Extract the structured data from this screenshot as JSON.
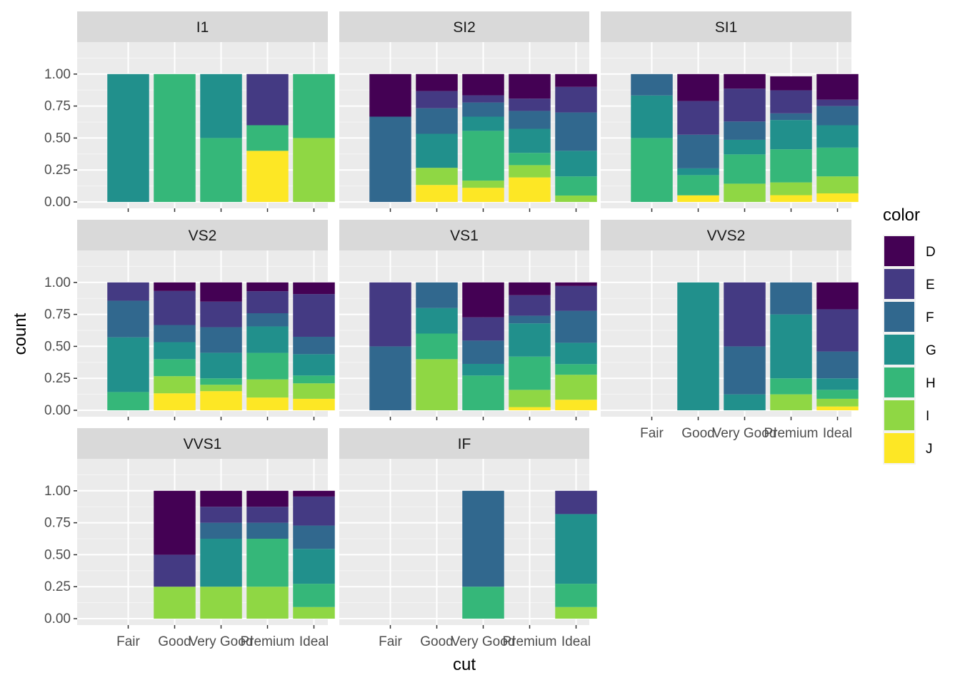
{
  "chart_data": {
    "type": "bar",
    "stacked": true,
    "position": "fill",
    "xlabel": "cut",
    "ylabel": "count",
    "ylim": [
      0,
      1
    ],
    "yticks": [
      "0.00",
      "0.25",
      "0.50",
      "0.75",
      "1.00"
    ],
    "categories": [
      "Fair",
      "Good",
      "Very Good",
      "Premium",
      "Ideal"
    ],
    "grid": true,
    "legend": {
      "title": "color",
      "position": "right",
      "entries": [
        "D",
        "E",
        "F",
        "G",
        "H",
        "I",
        "J"
      ],
      "colors": [
        "#440154",
        "#443A83",
        "#31688E",
        "#21908C",
        "#35B779",
        "#8FD744",
        "#FDE725"
      ]
    },
    "panels": [
      {
        "name": "I1",
        "bars": {
          "Fair": [
            0,
            0,
            0,
            1.0,
            0,
            0,
            0
          ],
          "Good": [
            0,
            0,
            0,
            0,
            1.0,
            0,
            0
          ],
          "Very Good": [
            0,
            0,
            0,
            0.5,
            0.5,
            0,
            0
          ],
          "Premium": [
            0,
            0.4,
            0,
            0,
            0.2,
            0,
            0.4
          ],
          "Ideal": [
            0,
            0,
            0,
            0,
            0.5,
            0.5,
            0
          ]
        }
      },
      {
        "name": "SI2",
        "bars": {
          "Fair": [
            0.333,
            0,
            0.667,
            0,
            0,
            0,
            0
          ],
          "Good": [
            0.133,
            0.134,
            0.2,
            0.266,
            0,
            0.134,
            0.133
          ],
          "Very Good": [
            0.166,
            0.056,
            0.111,
            0.111,
            0.389,
            0.056,
            0.111
          ],
          "Premium": [
            0.192,
            0.096,
            0.14,
            0.188,
            0.096,
            0.096,
            0.192
          ],
          "Ideal": [
            0.1,
            0.2,
            0.3,
            0.2,
            0.15,
            0.05,
            0
          ]
        }
      },
      {
        "name": "SI1",
        "bars": {
          "Fair": [
            0,
            0,
            0.167,
            0.333,
            0.5,
            0,
            0
          ],
          "Good": [
            0.211,
            0.263,
            0.263,
            0.053,
            0.158,
            0,
            0.052
          ],
          "Very Good": [
            0.114,
            0.257,
            0.143,
            0.114,
            0.229,
            0.143,
            0
          ],
          "Premium": [
            0.109,
            0.18,
            0.052,
            0.229,
            0.259,
            0.1,
            0.053
          ],
          "Ideal": [
            0.2,
            0.05,
            0.15,
            0.175,
            0.225,
            0.133,
            0.067
          ]
        }
      },
      {
        "name": "VS2",
        "bars": {
          "Fair": [
            0,
            0.143,
            0.286,
            0.428,
            0.143,
            0,
            0
          ],
          "Good": [
            0.067,
            0.266,
            0.134,
            0.133,
            0.133,
            0.134,
            0.133
          ],
          "Very Good": [
            0.15,
            0.2,
            0.2,
            0.2,
            0.05,
            0.05,
            0.15
          ],
          "Premium": [
            0.069,
            0.172,
            0.103,
            0.207,
            0.207,
            0.142,
            0.1
          ],
          "Ideal": [
            0.091,
            0.334,
            0.136,
            0.167,
            0.061,
            0.121,
            0.09
          ]
        }
      },
      {
        "name": "VS1",
        "bars": {
          "Fair": [
            0,
            0.5,
            0.5,
            0,
            0,
            0,
            0
          ],
          "Good": [
            0,
            0,
            0.2,
            0.2,
            0.2,
            0.4,
            0
          ],
          "Very Good": [
            0.273,
            0.182,
            0.182,
            0.091,
            0.272,
            0,
            0
          ],
          "Premium": [
            0.1,
            0.16,
            0.06,
            0.26,
            0.26,
            0.135,
            0.025
          ],
          "Ideal": [
            0.028,
            0.194,
            0.25,
            0.167,
            0.083,
            0.195,
            0.083
          ]
        }
      },
      {
        "name": "VVS2",
        "bars": {
          "Fair": [
            0,
            0,
            0,
            0,
            0,
            0,
            0
          ],
          "Good": [
            0,
            0,
            0,
            1.0,
            0,
            0,
            0
          ],
          "Very Good": [
            0,
            0.5,
            0.375,
            0.125,
            0,
            0,
            0
          ],
          "Premium": [
            0,
            0,
            0.25,
            0.5,
            0.125,
            0.125,
            0
          ],
          "Ideal": [
            0.21,
            0.33,
            0.21,
            0.09,
            0.07,
            0.06,
            0.03
          ]
        }
      },
      {
        "name": "VVS1",
        "bars": {
          "Fair": [
            0,
            0,
            0,
            0,
            0,
            0,
            0
          ],
          "Good": [
            0.5,
            0.25,
            0,
            0,
            0,
            0.25,
            0
          ],
          "Very Good": [
            0.125,
            0.125,
            0.125,
            0.375,
            0,
            0.25,
            0
          ],
          "Premium": [
            0.125,
            0.125,
            0.125,
            0,
            0.375,
            0.25,
            0
          ],
          "Ideal": [
            0.045,
            0.227,
            0.182,
            0.273,
            0.182,
            0.091,
            0
          ]
        }
      },
      {
        "name": "IF",
        "bars": {
          "Fair": [
            0,
            0,
            0,
            0,
            0,
            0,
            0
          ],
          "Good": [
            0,
            0,
            0,
            0,
            0,
            0,
            0
          ],
          "Very Good": [
            0,
            0,
            0.75,
            0,
            0.25,
            0,
            0
          ],
          "Premium": [
            0,
            0,
            0,
            0,
            0,
            0,
            0
          ],
          "Ideal": [
            0,
            0.182,
            0,
            0.545,
            0.182,
            0.091,
            0
          ]
        }
      }
    ]
  }
}
